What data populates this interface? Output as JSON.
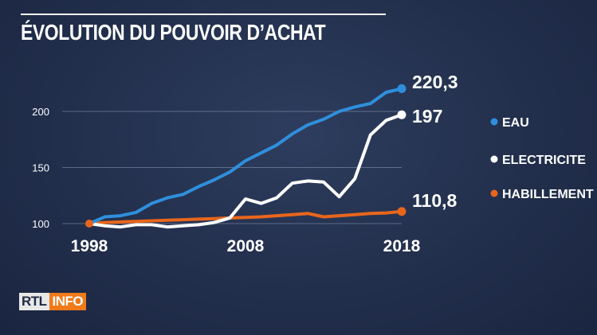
{
  "title": "ÉVOLUTION DU POUVOIR D’ACHAT",
  "logo": {
    "part1": "RTL",
    "part2": "INFO"
  },
  "chart_data": {
    "type": "line",
    "title": "ÉVOLUTION DU POUVOIR D’ACHAT",
    "xlabel": "",
    "ylabel": "",
    "x": [
      1998,
      1999,
      2000,
      2001,
      2002,
      2003,
      2004,
      2005,
      2006,
      2007,
      2008,
      2009,
      2010,
      2011,
      2012,
      2013,
      2014,
      2015,
      2016,
      2017,
      2018
    ],
    "x_ticks": [
      "1998",
      "2008",
      "2018"
    ],
    "y_ticks": [
      "100",
      "150",
      "200"
    ],
    "y_tick_values": [
      100,
      150,
      200
    ],
    "xlim": [
      1998,
      2018
    ],
    "ylim": [
      100,
      200
    ],
    "grid": "horizontal",
    "legend_position": "right",
    "series": [
      {
        "name": "EAU",
        "color": "#2f8fdc",
        "end_label": "220,3",
        "values": [
          100,
          106,
          107,
          110,
          118,
          123,
          126,
          133,
          139,
          146,
          156,
          163,
          170,
          180,
          188,
          193,
          200,
          204,
          207,
          217,
          220.3
        ]
      },
      {
        "name": "ELECTRICITE",
        "color": "#ffffff",
        "end_label": "197",
        "values": [
          100,
          98,
          97,
          99,
          99,
          97,
          98,
          99,
          101,
          105,
          122,
          118,
          123,
          136,
          138,
          137,
          124,
          140,
          179,
          192,
          197
        ]
      },
      {
        "name": "HABILLEMENT",
        "color": "#e8661c",
        "end_label": "110,8",
        "values": [
          100,
          101,
          101.5,
          102,
          102.5,
          103,
          103.5,
          104,
          104.5,
          105,
          105.5,
          106,
          107,
          108,
          109,
          106,
          107,
          108,
          109,
          109.5,
          110.8
        ]
      }
    ]
  }
}
